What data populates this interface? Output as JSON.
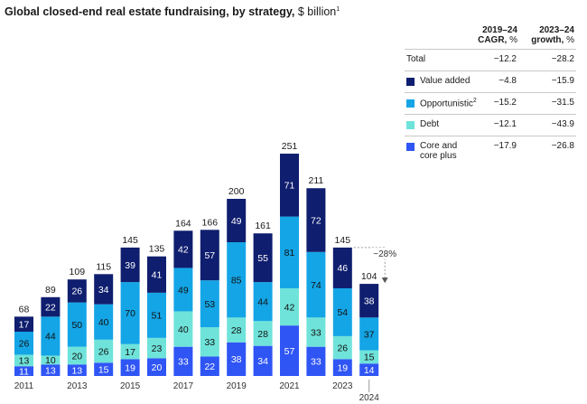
{
  "title": {
    "bold": "Global closed-end real estate fundraising, by strategy,",
    "unit": " $ billion",
    "footnote": "1"
  },
  "colors": {
    "core": "#2f55f5",
    "debt": "#6fe3da",
    "opportunistic": "#14a5e6",
    "value_added": "#0f1e6e"
  },
  "chart_data": {
    "type": "bar",
    "stacked": true,
    "categories": [
      "2011",
      "2012",
      "2013",
      "2014",
      "2015",
      "2016",
      "2017",
      "2018",
      "2019",
      "2020",
      "2021",
      "2022",
      "2023",
      "2024"
    ],
    "x_tick_labels_shown": [
      "2011",
      "2013",
      "2015",
      "2017",
      "2019",
      "2021",
      "2023",
      "2024"
    ],
    "series": [
      {
        "name": "Core and core plus",
        "values": [
          11,
          13,
          13,
          15,
          19,
          20,
          33,
          22,
          38,
          34,
          57,
          33,
          19,
          14
        ]
      },
      {
        "name": "Debt",
        "values": [
          13,
          10,
          20,
          26,
          17,
          23,
          40,
          33,
          28,
          28,
          42,
          33,
          26,
          15
        ]
      },
      {
        "name": "Opportunistic",
        "values": [
          26,
          44,
          50,
          40,
          70,
          51,
          49,
          53,
          85,
          44,
          81,
          74,
          54,
          37
        ]
      },
      {
        "name": "Value added",
        "values": [
          17,
          22,
          26,
          34,
          39,
          41,
          42,
          57,
          49,
          55,
          71,
          72,
          46,
          38
        ]
      }
    ],
    "totals": [
      68,
      89,
      109,
      115,
      145,
      135,
      164,
      166,
      200,
      161,
      251,
      211,
      145,
      104
    ],
    "annotation": {
      "label": "−28%",
      "from": "2023",
      "to": "2024"
    },
    "ylim": [
      0,
      251
    ]
  },
  "table": {
    "col1_header_line1": "2019–24",
    "col1_header_line2": "CAGR, %",
    "col2_header_line1": "2023–24",
    "col2_header_line2": "growth, %",
    "rows": [
      {
        "label": "Total",
        "label2": "",
        "sup": "",
        "cagr": "−12.2",
        "growth": "−28.2",
        "swatch": ""
      },
      {
        "label": "Value added",
        "label2": "",
        "sup": "",
        "cagr": "−4.8",
        "growth": "−15.9",
        "swatch": "#0f1e6e"
      },
      {
        "label": "Opportunistic",
        "label2": "",
        "sup": "2",
        "cagr": "−15.2",
        "growth": "−31.5",
        "swatch": "#14a5e6"
      },
      {
        "label": "Debt",
        "label2": "",
        "sup": "",
        "cagr": "−12.1",
        "growth": "−43.9",
        "swatch": "#6fe3da"
      },
      {
        "label": "Core and",
        "label2": "core plus",
        "sup": "",
        "cagr": "−17.9",
        "growth": "−26.8",
        "swatch": "#2f55f5"
      }
    ]
  }
}
